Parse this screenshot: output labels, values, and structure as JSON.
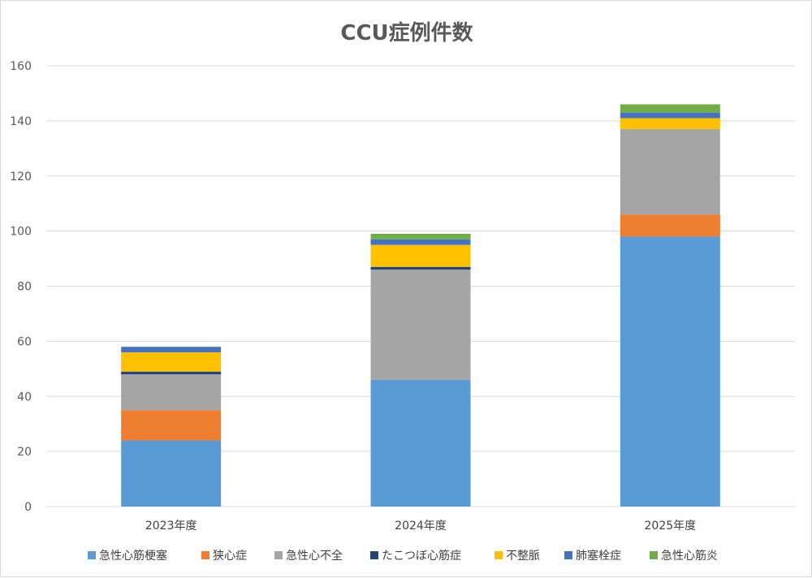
{
  "chart_data": {
    "type": "bar",
    "stacked": true,
    "title": "CCU症例件数",
    "xlabel": "",
    "ylabel": "",
    "ylim": [
      0,
      160
    ],
    "yticks": [
      0,
      20,
      40,
      60,
      80,
      100,
      120,
      140,
      160
    ],
    "grid": true,
    "legend_position": "bottom",
    "categories": [
      "2023年度",
      "2024年度",
      "2025年度"
    ],
    "series": [
      {
        "name": "急性心筋梗塞",
        "color": "#5b9bd5",
        "values": [
          24,
          46,
          98
        ]
      },
      {
        "name": "狭心症",
        "color": "#ed7d31",
        "values": [
          11,
          0,
          8
        ]
      },
      {
        "name": "急性心不全",
        "color": "#a5a5a5",
        "values": [
          13,
          40,
          31
        ]
      },
      {
        "name": "たこつぼ心筋症",
        "color": "#264478",
        "values": [
          1,
          1,
          0
        ]
      },
      {
        "name": "不整脈",
        "color": "#ffc000",
        "values": [
          7,
          8,
          4
        ]
      },
      {
        "name": "肺塞栓症",
        "color": "#4472c4",
        "values": [
          2,
          2,
          2
        ]
      },
      {
        "name": "急性心筋炎",
        "color": "#70ad47",
        "values": [
          0,
          2,
          3
        ]
      }
    ]
  }
}
